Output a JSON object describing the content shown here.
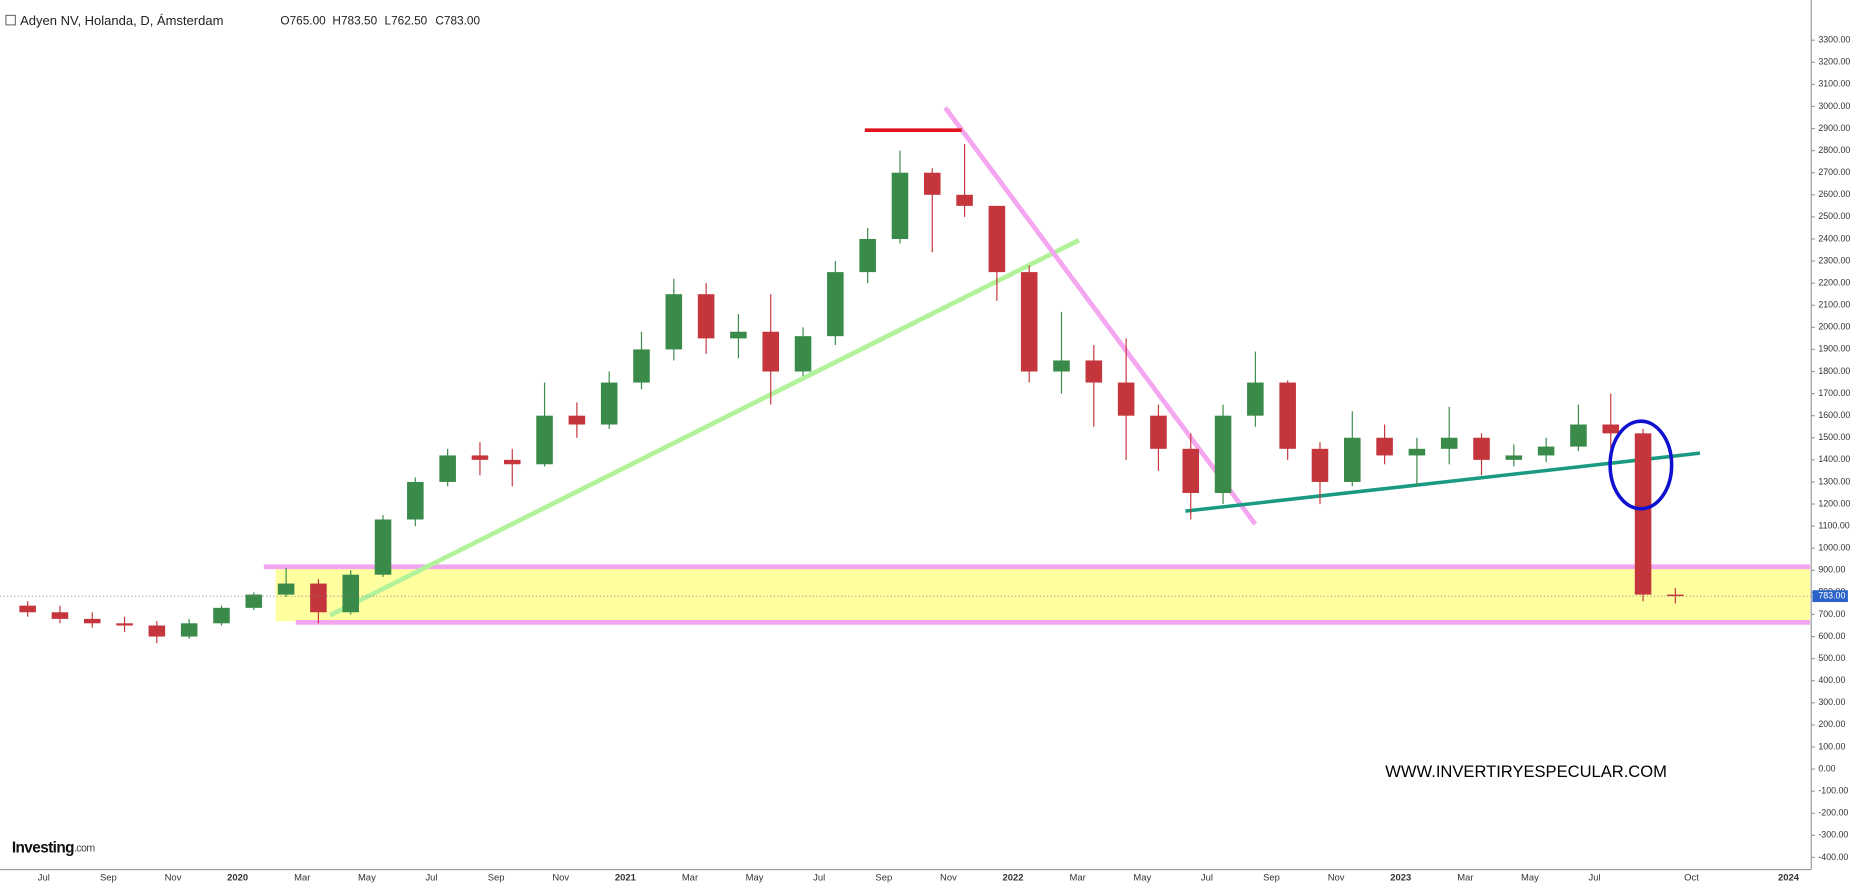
{
  "chart_data": {
    "type": "candlestick",
    "title": "Adyen NV, Holanda, D, Ámsterdam",
    "header_values": [
      "O765.00",
      "H783.50",
      "L762.50",
      "C783.00"
    ],
    "watermark": "WWW.INVERTIRYESPECULAR.COM",
    "logo_name": "Investing",
    "logo_suffix": ".com",
    "up_color": "#3a8a4a",
    "down_color": "#c4363c",
    "last_price": {
      "value": 783,
      "label": "783.00"
    },
    "categories": [
      null,
      "Jul",
      null,
      "Sep",
      null,
      "Nov",
      null,
      "2020",
      null,
      "Mar",
      null,
      "May",
      null,
      "Jul",
      null,
      "Sep",
      null,
      "Nov",
      null,
      "2021",
      null,
      "Mar",
      null,
      "May",
      null,
      "Jul",
      null,
      "Sep",
      null,
      "Nov",
      null,
      "2022",
      null,
      "Mar",
      null,
      "May",
      null,
      "Jul",
      null,
      "Sep",
      null,
      "Nov",
      null,
      "2023",
      null,
      "Mar",
      null,
      "May",
      null,
      "Jul",
      null,
      null,
      "Oct",
      null,
      null,
      "2024"
    ],
    "open": [
      740,
      710,
      680,
      660,
      650,
      600,
      660,
      730,
      790,
      840,
      710,
      880,
      1130,
      1300,
      1420,
      1400,
      1380,
      1600,
      1560,
      1750,
      1900,
      2150,
      1950,
      1980,
      1800,
      1960,
      2250,
      2400,
      2700,
      2600,
      2550,
      2250,
      1800,
      1850,
      1750,
      1600,
      1450,
      1250,
      1600,
      1750,
      1450,
      1300,
      1500,
      1420,
      1450,
      1500,
      1400,
      1420,
      1460,
      1560,
      1520,
      790,
      null,
      null,
      null,
      null
    ],
    "high": [
      760,
      740,
      710,
      690,
      670,
      680,
      740,
      800,
      910,
      860,
      900,
      1150,
      1320,
      1450,
      1480,
      1450,
      1750,
      1660,
      1800,
      1980,
      2220,
      2200,
      2060,
      2150,
      2000,
      2300,
      2450,
      2800,
      2720,
      2830,
      2550,
      2280,
      2070,
      1920,
      1950,
      1650,
      1520,
      1650,
      1890,
      1760,
      1480,
      1620,
      1560,
      1500,
      1640,
      1520,
      1470,
      1500,
      1650,
      1700,
      1540,
      820,
      null,
      null,
      null,
      null
    ],
    "low": [
      690,
      660,
      640,
      620,
      570,
      590,
      650,
      720,
      780,
      660,
      700,
      870,
      1100,
      1280,
      1330,
      1280,
      1370,
      1500,
      1540,
      1720,
      1850,
      1880,
      1860,
      1650,
      1780,
      1920,
      2200,
      2380,
      2340,
      2500,
      2120,
      1750,
      1700,
      1550,
      1400,
      1350,
      1130,
      1200,
      1550,
      1400,
      1200,
      1280,
      1380,
      1280,
      1380,
      1330,
      1370,
      1390,
      1440,
      1450,
      760,
      750,
      null,
      null,
      null,
      null
    ],
    "close": [
      710,
      680,
      660,
      650,
      600,
      660,
      730,
      790,
      840,
      710,
      880,
      1130,
      1300,
      1420,
      1400,
      1380,
      1600,
      1560,
      1750,
      1900,
      2150,
      1950,
      1980,
      1800,
      1960,
      2250,
      2400,
      2700,
      2600,
      2550,
      2250,
      1800,
      1850,
      1750,
      1600,
      1450,
      1250,
      1600,
      1750,
      1450,
      1300,
      1500,
      1420,
      1450,
      1500,
      1400,
      1420,
      1460,
      1560,
      1520,
      790,
      783,
      null,
      null,
      null,
      null
    ],
    "ylim": [
      -455,
      3455
    ],
    "yticks": [
      {
        "value": -400,
        "label": "-400.00"
      },
      {
        "value": -300,
        "label": "-300.00"
      },
      {
        "value": -200,
        "label": "-200.00"
      },
      {
        "value": -100,
        "label": "-100.00"
      },
      {
        "value": 0,
        "label": "0.00"
      },
      {
        "value": 100,
        "label": "100.00"
      },
      {
        "value": 200,
        "label": "200.00"
      },
      {
        "value": 300,
        "label": "300.00"
      },
      {
        "value": 400,
        "label": "400.00"
      },
      {
        "value": 500,
        "label": "500.00"
      },
      {
        "value": 600,
        "label": "600.00"
      },
      {
        "value": 700,
        "label": "700.00"
      },
      {
        "value": 800,
        "label": "800.00"
      },
      {
        "value": 900,
        "label": "900.00"
      },
      {
        "value": 1000,
        "label": "1000.00"
      },
      {
        "value": 1100,
        "label": "1100.00"
      },
      {
        "value": 1200,
        "label": "1200.00"
      },
      {
        "value": 1300,
        "label": "1300.00"
      },
      {
        "value": 1400,
        "label": "1400.00"
      },
      {
        "value": 1500,
        "label": "1500.00"
      },
      {
        "value": 1600,
        "label": "1600.00"
      },
      {
        "value": 1700,
        "label": "1700.00"
      },
      {
        "value": 1800,
        "label": "1800.00"
      },
      {
        "value": 1900,
        "label": "1900.00"
      },
      {
        "value": 2000,
        "label": "2000.00"
      },
      {
        "value": 2100,
        "label": "2100.00"
      },
      {
        "value": 2200,
        "label": "2200.00"
      },
      {
        "value": 2300,
        "label": "2300.00"
      },
      {
        "value": 2400,
        "label": "2400.00"
      },
      {
        "value": 2500,
        "label": "2500.00"
      },
      {
        "value": 2600,
        "label": "2600.00"
      },
      {
        "value": 2700,
        "label": "2700.00"
      },
      {
        "value": 2800,
        "label": "2800.00"
      },
      {
        "value": 2900,
        "label": "2900.00"
      },
      {
        "value": 3000,
        "label": "3000.00"
      },
      {
        "value": 3100,
        "label": "3100.00"
      },
      {
        "value": 3200,
        "label": "3200.00"
      },
      {
        "value": 3300,
        "label": "3300.00"
      }
    ],
    "grid": false
  }
}
